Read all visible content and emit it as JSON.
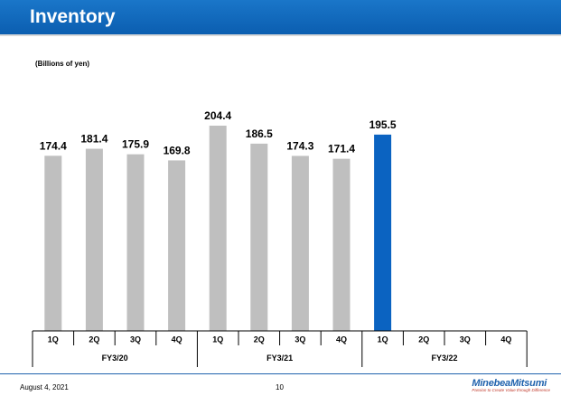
{
  "header": {
    "title": "Inventory"
  },
  "chart_data": {
    "type": "bar",
    "unit_label": "(Billions of yen)",
    "categories": [
      "1Q",
      "2Q",
      "3Q",
      "4Q",
      "1Q",
      "2Q",
      "3Q",
      "4Q",
      "1Q",
      "2Q",
      "3Q",
      "4Q"
    ],
    "groups": [
      {
        "label": "FY3/20",
        "quarters": 4
      },
      {
        "label": "FY3/21",
        "quarters": 4
      },
      {
        "label": "FY3/22",
        "quarters": 4
      }
    ],
    "values": [
      174.4,
      181.4,
      175.9,
      169.8,
      204.4,
      186.5,
      174.3,
      171.4,
      195.5,
      null,
      null,
      null
    ],
    "value_labels": [
      "174.4",
      "181.4",
      "175.9",
      "169.8",
      "204.4",
      "186.5",
      "174.3",
      "171.4",
      "195.5",
      "",
      "",
      ""
    ],
    "colors": {
      "past": "#bfbfbf",
      "current": "#0b63c1",
      "axis": "#000000"
    },
    "highlight_index": 8,
    "ylim": [
      0,
      204.4
    ]
  },
  "footer": {
    "date": "August 4, 2021",
    "page": "10",
    "logo_name": "MinebeaMitsumi",
    "logo_tagline": "Passion to Create Value through Difference"
  }
}
